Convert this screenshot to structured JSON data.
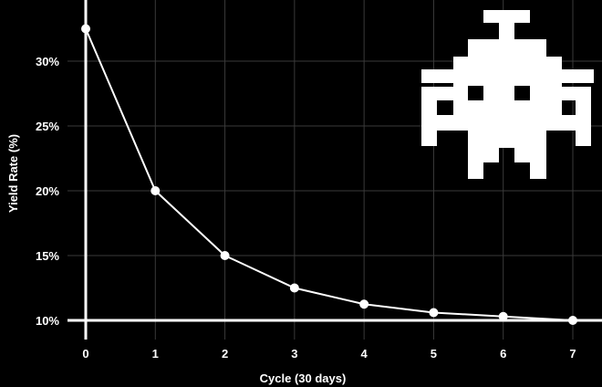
{
  "chart_data": {
    "type": "line",
    "xlabel": "Cycle (30 days)",
    "ylabel": "Yield Rate (%)",
    "x": [
      0,
      1,
      2,
      3,
      4,
      5,
      6,
      7
    ],
    "series": [
      {
        "values": [
          32.5,
          20.0,
          15.0,
          12.5,
          11.25,
          10.6,
          10.3,
          10.0
        ]
      }
    ],
    "xticks": [
      "0",
      "1",
      "2",
      "3",
      "4",
      "5",
      "6",
      "7"
    ],
    "yticks": [
      {
        "value": 10,
        "label": "10%"
      },
      {
        "value": 15,
        "label": "15%"
      },
      {
        "value": 20,
        "label": "20%"
      },
      {
        "value": 25,
        "label": "25%"
      },
      {
        "value": 30,
        "label": "30%"
      }
    ],
    "xlim": [
      -0.2,
      7.4
    ],
    "ylim": [
      9.5,
      33.5
    ],
    "grid": true,
    "line_color": "#ffffff",
    "background_color": "#000000",
    "grid_color": "#3a3a3a",
    "decoration_icon": "space-invader-icon"
  }
}
